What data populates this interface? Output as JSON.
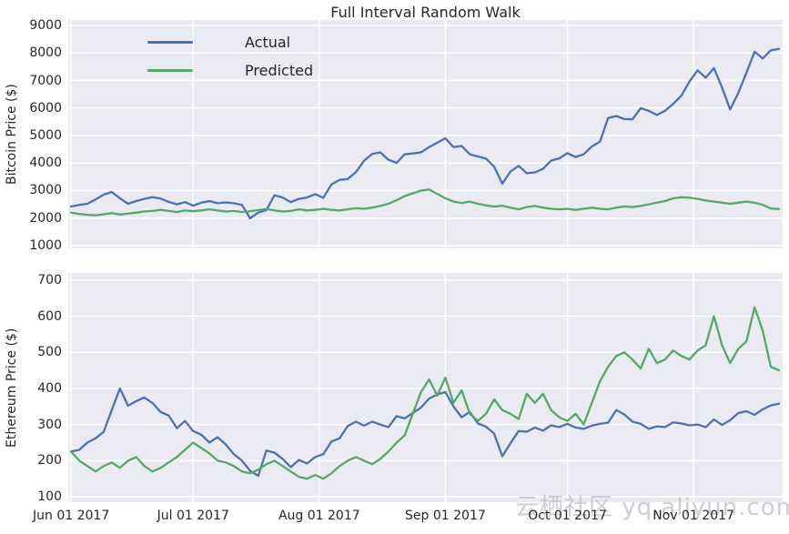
{
  "title": "Full Interval Random Walk",
  "watermark": {
    "text": "云栖社区 yq.aliyun.com"
  },
  "legend": {
    "items": [
      {
        "label": "Actual",
        "color": "#4C72B0"
      },
      {
        "label": "Predicted",
        "color": "#55A868"
      }
    ]
  },
  "colors": {
    "actual": "#4C72B0",
    "predicted": "#55A868",
    "plot_background": "#EAEAF2",
    "grid": "#FFFFFF",
    "text": "#262626",
    "watermark": "#C0C2CC"
  },
  "chart_data": [
    {
      "type": "line",
      "title": "Full Interval Random Walk",
      "xlabel": "",
      "ylabel": "Bitcoin Price ($)",
      "grid": true,
      "legend_position": "upper left",
      "xlim": [
        -0.7,
        174.9
      ],
      "ylim": [
        900,
        9200
      ],
      "y_ticks": [
        1000,
        2000,
        3000,
        4000,
        5000,
        6000,
        7000,
        8000,
        9000
      ],
      "x_unit": "days since Jun 01 2017, 2-day sampling",
      "x_start": 0,
      "x_step": 2,
      "x_ticks": [
        {
          "pos": 0,
          "label": "Jun 01 2017"
        },
        {
          "pos": 30,
          "label": "Jul 01 2017"
        },
        {
          "pos": 61,
          "label": "Aug 01 2017"
        },
        {
          "pos": 92,
          "label": "Sep 01 2017"
        },
        {
          "pos": 122,
          "label": "Oct 01 2017"
        },
        {
          "pos": 153,
          "label": "Nov 01 2017"
        }
      ],
      "x_tick_labels_visible": false,
      "series": [
        {
          "name": "Actual",
          "color": "#4C72B0",
          "values": [
            2420,
            2480,
            2520,
            2680,
            2850,
            2950,
            2720,
            2520,
            2620,
            2700,
            2760,
            2710,
            2590,
            2500,
            2580,
            2450,
            2560,
            2620,
            2540,
            2570,
            2540,
            2480,
            1990,
            2200,
            2290,
            2830,
            2750,
            2580,
            2700,
            2750,
            2870,
            2740,
            3220,
            3390,
            3420,
            3670,
            4080,
            4330,
            4390,
            4120,
            4010,
            4320,
            4350,
            4390,
            4580,
            4740,
            4900,
            4580,
            4620,
            4320,
            4240,
            4160,
            3870,
            3250,
            3690,
            3900,
            3630,
            3660,
            3790,
            4090,
            4170,
            4360,
            4220,
            4320,
            4600,
            4780,
            5640,
            5710,
            5600,
            5590,
            6000,
            5900,
            5750,
            5900,
            6150,
            6450,
            6960,
            7370,
            7100,
            7450,
            6750,
            5950,
            6550,
            7280,
            8050,
            7800,
            8100,
            8150
          ]
        },
        {
          "name": "Predicted",
          "color": "#55A868",
          "values": [
            2200,
            2150,
            2120,
            2100,
            2140,
            2180,
            2130,
            2160,
            2200,
            2240,
            2260,
            2300,
            2260,
            2220,
            2280,
            2250,
            2280,
            2320,
            2280,
            2240,
            2260,
            2220,
            2250,
            2290,
            2330,
            2280,
            2240,
            2260,
            2320,
            2280,
            2300,
            2340,
            2300,
            2280,
            2320,
            2360,
            2340,
            2380,
            2440,
            2520,
            2650,
            2800,
            2900,
            3000,
            3040,
            2880,
            2720,
            2600,
            2550,
            2600,
            2520,
            2460,
            2420,
            2450,
            2380,
            2320,
            2400,
            2440,
            2380,
            2340,
            2320,
            2340,
            2300,
            2340,
            2380,
            2340,
            2320,
            2380,
            2420,
            2400,
            2440,
            2500,
            2560,
            2620,
            2720,
            2760,
            2740,
            2700,
            2640,
            2600,
            2560,
            2520,
            2560,
            2600,
            2560,
            2480,
            2350,
            2330
          ]
        }
      ]
    },
    {
      "type": "line",
      "title": "",
      "xlabel": "",
      "ylabel": "Ethereum Price ($)",
      "grid": true,
      "legend_position": "none",
      "xlim": [
        -0.7,
        174.9
      ],
      "ylim": [
        85,
        720
      ],
      "y_ticks": [
        100,
        200,
        300,
        400,
        500,
        600,
        700
      ],
      "x_unit": "days since Jun 01 2017, 2-day sampling",
      "x_start": 0,
      "x_step": 2,
      "x_ticks": [
        {
          "pos": 0,
          "label": "Jun 01 2017"
        },
        {
          "pos": 30,
          "label": "Jul 01 2017"
        },
        {
          "pos": 61,
          "label": "Aug 01 2017"
        },
        {
          "pos": 92,
          "label": "Sep 01 2017"
        },
        {
          "pos": 122,
          "label": "Oct 01 2017"
        },
        {
          "pos": 153,
          "label": "Nov 01 2017"
        }
      ],
      "x_tick_labels_visible": true,
      "series": [
        {
          "name": "Actual",
          "color": "#4C72B0",
          "values": [
            225,
            230,
            250,
            262,
            280,
            340,
            400,
            352,
            365,
            375,
            360,
            335,
            325,
            290,
            310,
            282,
            272,
            250,
            265,
            245,
            218,
            200,
            172,
            158,
            228,
            222,
            205,
            182,
            202,
            192,
            210,
            218,
            253,
            262,
            296,
            308,
            297,
            308,
            300,
            293,
            323,
            317,
            332,
            347,
            372,
            383,
            390,
            350,
            320,
            335,
            303,
            294,
            275,
            212,
            248,
            282,
            280,
            292,
            283,
            298,
            293,
            302,
            292,
            288,
            297,
            302,
            305,
            340,
            328,
            308,
            302,
            288,
            295,
            293,
            306,
            303,
            298,
            300,
            293,
            314,
            299,
            312,
            332,
            337,
            327,
            342,
            353,
            358
          ]
        },
        {
          "name": "Predicted",
          "color": "#55A868",
          "values": [
            225,
            200,
            185,
            170,
            185,
            195,
            180,
            200,
            210,
            185,
            170,
            180,
            195,
            210,
            230,
            250,
            235,
            220,
            200,
            195,
            185,
            170,
            165,
            175,
            190,
            200,
            185,
            170,
            155,
            150,
            160,
            150,
            165,
            185,
            200,
            210,
            200,
            190,
            205,
            225,
            250,
            270,
            330,
            390,
            425,
            380,
            430,
            360,
            395,
            330,
            310,
            330,
            370,
            340,
            330,
            315,
            385,
            360,
            385,
            340,
            320,
            310,
            330,
            300,
            360,
            420,
            460,
            490,
            500,
            480,
            455,
            510,
            470,
            480,
            505,
            490,
            480,
            505,
            520,
            600,
            520,
            470,
            510,
            530,
            625,
            560,
            460,
            450
          ]
        }
      ]
    }
  ]
}
